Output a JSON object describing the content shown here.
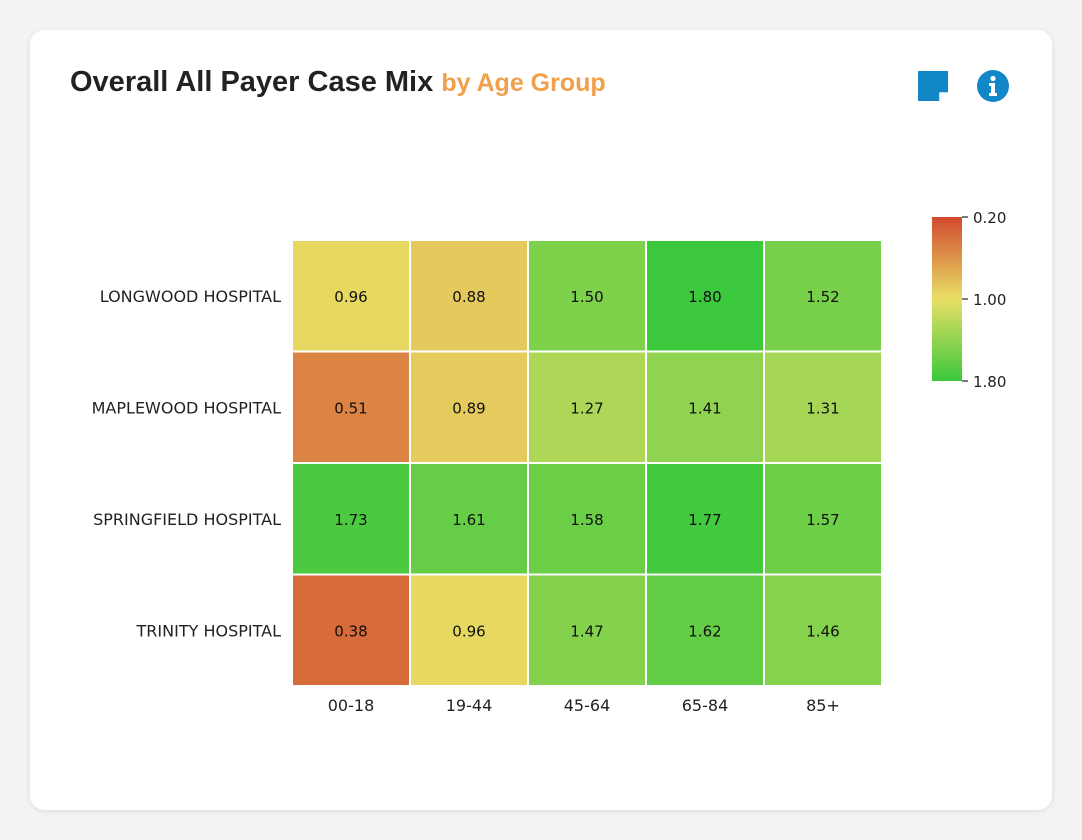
{
  "header": {
    "title": "Overall All Payer Case Mix",
    "subtitle": "by Age Group"
  },
  "icons": {
    "note": "sticky-note-icon",
    "info": "info-icon"
  },
  "colors": {
    "accent": "#f0a04b",
    "icon_blue": "#1287c7",
    "scale_low": "#d24a2e",
    "scale_mid": "#e8df65",
    "scale_high": "#3cc83c"
  },
  "chart_data": {
    "type": "heatmap",
    "x_categories": [
      "00-18",
      "19-44",
      "45-64",
      "65-84",
      "85+"
    ],
    "y_categories": [
      "LONGWOOD HOSPITAL",
      "MAPLEWOOD HOSPITAL",
      "SPRINGFIELD HOSPITAL",
      "TRINITY HOSPITAL"
    ],
    "values": [
      [
        0.96,
        0.88,
        1.5,
        1.8,
        1.52
      ],
      [
        0.51,
        0.89,
        1.27,
        1.41,
        1.31
      ],
      [
        1.73,
        1.61,
        1.58,
        1.77,
        1.57
      ],
      [
        0.38,
        0.96,
        1.47,
        1.62,
        1.46
      ]
    ],
    "labels": [
      [
        "0.96",
        "0.88",
        "1.50",
        "1.80",
        "1.52"
      ],
      [
        "0.51",
        "0.89",
        "1.27",
        "1.41",
        "1.31"
      ],
      [
        "1.73",
        "1.61",
        "1.58",
        "1.77",
        "1.57"
      ],
      [
        "0.38",
        "0.96",
        "1.47",
        "1.62",
        "1.46"
      ]
    ],
    "colorscale": {
      "min": 0.2,
      "max": 1.8,
      "ticks": [
        "0.20",
        "1.00",
        "1.80"
      ],
      "tick_values": [
        0.2,
        1.0,
        1.8
      ],
      "min_color": "#d24a2e",
      "mid_color": "#e8df65",
      "max_color": "#3cc83c"
    },
    "legend_position": "right"
  }
}
